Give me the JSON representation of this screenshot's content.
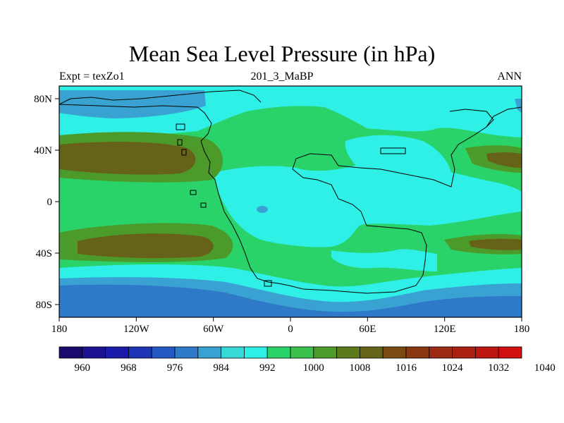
{
  "title": "Mean Sea Level Pressure (in hPa)",
  "subtitle_left": "Expt = texZo1",
  "subtitle_center": "201_3_MaBP",
  "subtitle_right": "ANN",
  "lon_ticks": [
    "180",
    "120W",
    "60W",
    "0",
    "60E",
    "120E",
    "180"
  ],
  "lat_ticks": [
    "80N",
    "40N",
    "0",
    "40S",
    "80S"
  ],
  "colorbar": {
    "labels": [
      "960",
      "968",
      "976",
      "984",
      "992",
      "1000",
      "1008",
      "1016",
      "1024",
      "1032",
      "1040"
    ],
    "colors": [
      "#1a0a6e",
      "#1c1191",
      "#1a1ba8",
      "#1f35b8",
      "#2458c2",
      "#2f7ac8",
      "#3aa2d2",
      "#36d8d8",
      "#2ef0e6",
      "#2ad26a",
      "#3cc24c",
      "#4c9a2a",
      "#5a7a1c",
      "#66621a",
      "#7a4a12",
      "#8a3812",
      "#9c2a14",
      "#ac2012",
      "#bc1610",
      "#d01010"
    ]
  },
  "chart_data": {
    "type": "contour-map",
    "variable": "Mean Sea Level Pressure",
    "units": "hPa",
    "projection": "cylindrical equidistant",
    "lon_range": [
      -180,
      180
    ],
    "lat_range": [
      -90,
      90
    ],
    "contour_levels": [
      960,
      964,
      968,
      972,
      976,
      980,
      984,
      988,
      992,
      996,
      1000,
      1004,
      1008,
      1012,
      1016,
      1020,
      1024,
      1028,
      1032,
      1036,
      1040
    ]
  }
}
